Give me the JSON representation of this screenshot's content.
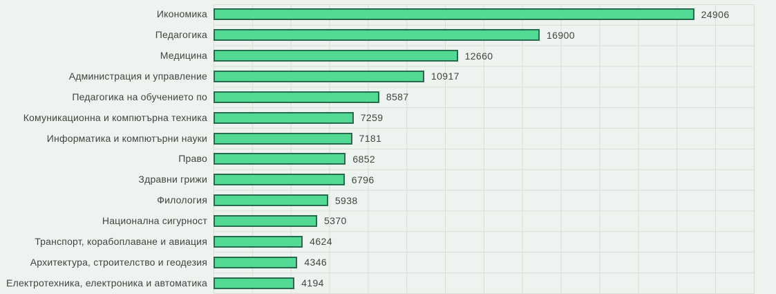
{
  "chart_data": {
    "type": "bar",
    "orientation": "horizontal",
    "title": "",
    "legend": "none",
    "grid": true,
    "categories": [
      "Икономика",
      "Педагогика",
      "Медицина",
      "Администрация и управление",
      "Педагогика на обучението по",
      "Комуникационна и компютърна техника",
      "Информатика и компютърни науки",
      "Право",
      "Здравни грижи",
      "Филология",
      "Национална сигурност",
      "Транспорт, корабоплаване и авиация",
      "Архитектура, строителство и геодезия",
      "Електротехника, електроника и автоматика"
    ],
    "values": [
      24906,
      16900,
      12660,
      10917,
      8587,
      7259,
      7181,
      6852,
      6796,
      5938,
      5370,
      4624,
      4346,
      4194
    ],
    "xlabel": "",
    "ylabel": "",
    "xlim": [
      0,
      28000
    ],
    "gridline_step_x": 2000,
    "colors": {
      "background": "#edf3ee",
      "bar_fill": "#52d994",
      "bar_border": "#266b4d",
      "gridline": "#d9ded9",
      "category_text": "#3f4540",
      "value_text": "#3f4540"
    }
  }
}
